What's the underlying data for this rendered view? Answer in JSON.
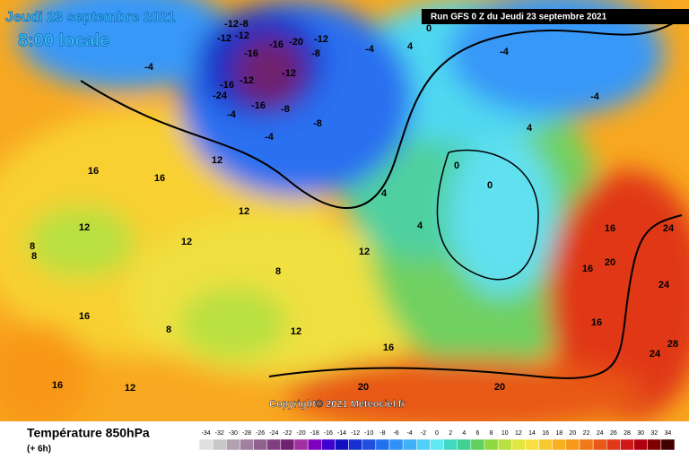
{
  "header": {
    "date": "Jeudi 23 septembre 2021",
    "time": "8:00 locale",
    "run": "Run GFS 0 Z du Jeudi 23 septembre 2021"
  },
  "map": {
    "copyright": "Copyright© 2021 Meteociel.fr",
    "labels": [
      "-12",
      "-8",
      "-12",
      "-12",
      "-16",
      "-20",
      "-12",
      "-8",
      "-16",
      "-4",
      "-4",
      "-16",
      "-12",
      "-24",
      "-16",
      "-8",
      "-12",
      "-4",
      "-8",
      "-4",
      "4",
      "0",
      "-4",
      "-4",
      "4",
      "0",
      "0",
      "4",
      "4",
      "12",
      "16",
      "16",
      "12",
      "12",
      "12",
      "8",
      "8",
      "8",
      "12",
      "16",
      "16",
      "16",
      "12",
      "20",
      "20",
      "24",
      "24",
      "28",
      "20",
      "16",
      "16",
      "24",
      "8",
      "12",
      "16"
    ]
  },
  "footer": {
    "title": "Température 850hPa",
    "subtitle": "(+ 6h)"
  },
  "scale": {
    "values": [
      -34,
      -32,
      -30,
      -28,
      -26,
      -24,
      -22,
      -20,
      -18,
      -16,
      -14,
      -12,
      -10,
      -8,
      -6,
      -4,
      -2,
      0,
      2,
      4,
      6,
      8,
      10,
      12,
      14,
      16,
      18,
      20,
      22,
      24,
      26,
      28,
      30,
      32,
      34
    ],
    "colors": [
      "#e0e0e0",
      "#c8c8c8",
      "#b0a0b0",
      "#a080a0",
      "#906090",
      "#804080",
      "#702070",
      "#a030a0",
      "#8000c0",
      "#4000d0",
      "#1010c0",
      "#1830d0",
      "#2050e0",
      "#2070f0",
      "#3090f8",
      "#40b0f8",
      "#50d0f8",
      "#60e8f0",
      "#40d8c0",
      "#40d090",
      "#60d060",
      "#90d840",
      "#b8e040",
      "#e0e840",
      "#f8e040",
      "#f8c830",
      "#f8b020",
      "#f89818",
      "#f07818",
      "#e85818",
      "#e03818",
      "#d01818",
      "#b00010",
      "#800000",
      "#400000"
    ]
  }
}
